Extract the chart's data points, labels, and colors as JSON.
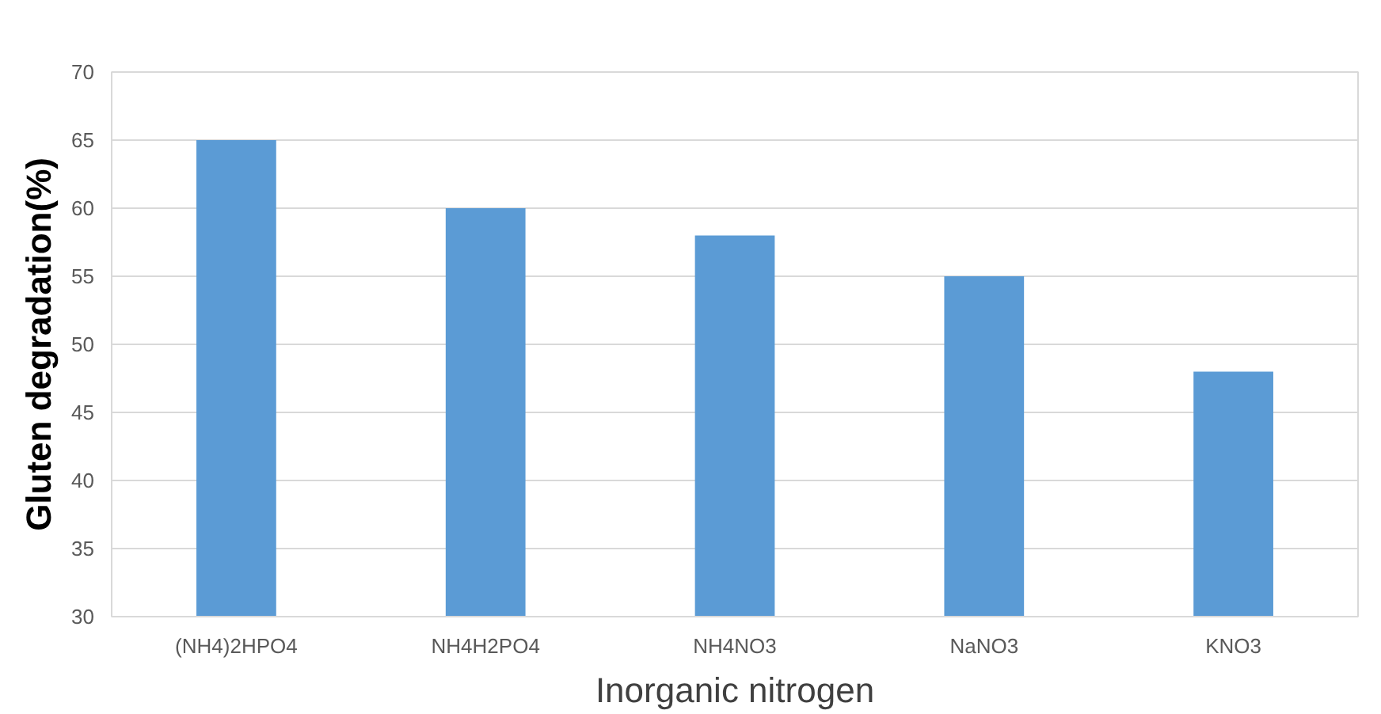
{
  "chart_data": {
    "type": "bar",
    "categories": [
      "(NH4)2HPO4",
      "NH4H2PO4",
      "NH4NO3",
      "NaNO3",
      "KNO3"
    ],
    "values": [
      65,
      60,
      58,
      55,
      48
    ],
    "color": "#5b9bd5",
    "xlabel": "Inorganic nitrogen",
    "ylabel": "Gluten degradation(%)",
    "ylim": [
      30,
      70
    ],
    "yticks": [
      30,
      35,
      40,
      45,
      50,
      55,
      60,
      65,
      70
    ],
    "grid": "y"
  }
}
